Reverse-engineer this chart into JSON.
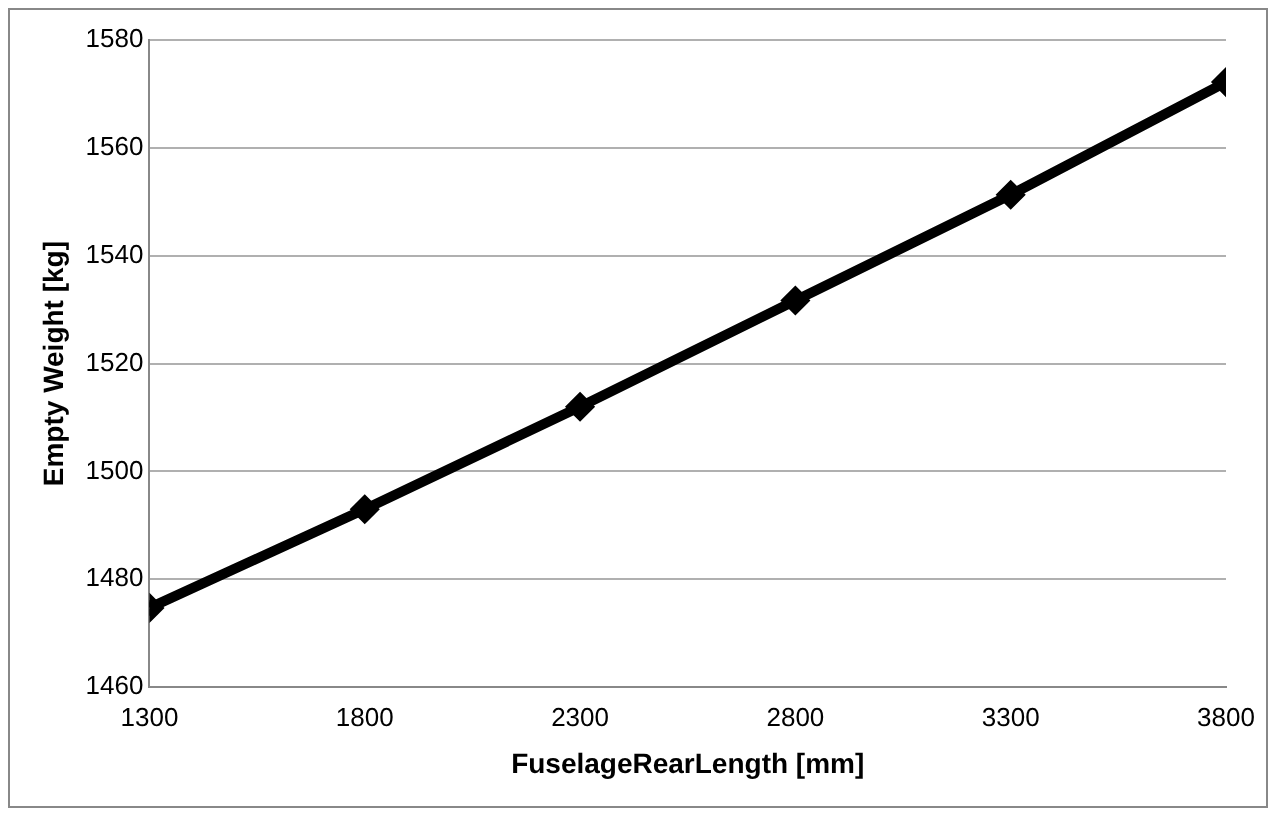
{
  "chart_data": {
    "type": "line",
    "xlabel": "FuselageRearLength [mm]",
    "ylabel": "Empty Weight [kg]",
    "x": [
      1300,
      1800,
      2300,
      2800,
      3300,
      3800
    ],
    "series": [
      {
        "color": "#000000",
        "values": [
          1474.7,
          1493,
          1512,
          1531.7,
          1551.3,
          1572.2
        ]
      }
    ],
    "xlim": [
      1300,
      3800
    ],
    "xticks": [
      1300,
      1800,
      2300,
      2800,
      3300,
      3800
    ],
    "ylim": [
      1460,
      1580
    ],
    "yticks": [
      1460,
      1480,
      1500,
      1520,
      1540,
      1560,
      1580
    ],
    "grid": "y",
    "marker": "diamond",
    "line_style": "solid",
    "legend": false
  }
}
